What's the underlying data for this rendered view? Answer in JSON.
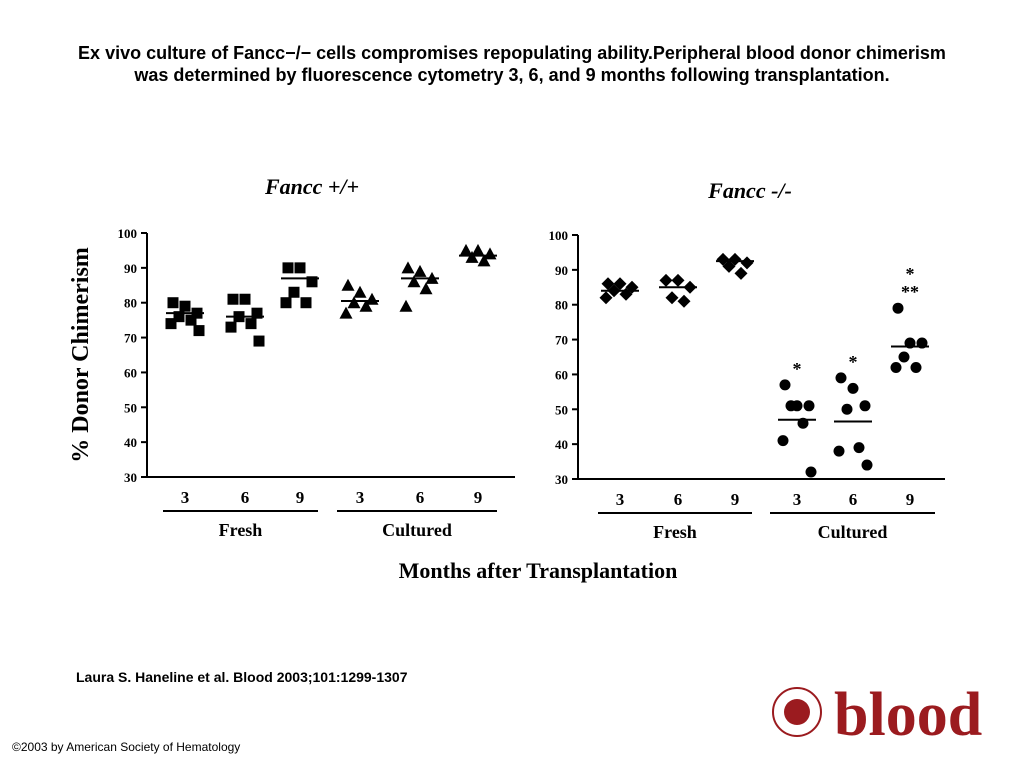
{
  "title": "Ex vivo culture of Fancc−/− cells compromises repopulating ability.Peripheral blood donor chimerism was determined by fluorescence cytometry 3, 6, and 9 months following transplantation.",
  "y_label": "% Donor Chimerism",
  "x_label": "Months after Transplantation",
  "citation": "Laura S. Haneline et al. Blood 2003;101:1299-1307",
  "copyright": "©2003 by American Society of Hematology",
  "logo": "blood",
  "chart_data": [
    {
      "type": "dotplot",
      "title": "Fancc +/+",
      "categories": [
        "3",
        "6",
        "9",
        "3",
        "6",
        "9"
      ],
      "groups": [
        "Fresh",
        "Cultured"
      ],
      "markers": [
        "square",
        "square",
        "square",
        "triangle",
        "triangle",
        "triangle"
      ],
      "color": "#000000",
      "points": [
        [
          80,
          79,
          77,
          76,
          75,
          74,
          72
        ],
        [
          81,
          81,
          77,
          76,
          74,
          73,
          69
        ],
        [
          90,
          90,
          86,
          83,
          80,
          80
        ],
        [
          85,
          83,
          81,
          80,
          79,
          77
        ],
        [
          90,
          89,
          87,
          86,
          84,
          79
        ],
        [
          95,
          95,
          94,
          93,
          92
        ]
      ],
      "means": [
        77,
        76,
        87,
        80.5,
        87,
        93.5
      ],
      "ylim": [
        30,
        100
      ],
      "yticks": [
        30,
        40,
        50,
        60,
        70,
        80,
        90,
        100
      ]
    },
    {
      "type": "dotplot",
      "title": "Fancc -/-",
      "categories": [
        "3",
        "6",
        "9",
        "3",
        "6",
        "9"
      ],
      "groups": [
        "Fresh",
        "Cultured"
      ],
      "markers": [
        "diamond",
        "diamond",
        "diamond",
        "circle",
        "circle",
        "circle"
      ],
      "color": "#000000",
      "points": [
        [
          86,
          86,
          85,
          84,
          83,
          82
        ],
        [
          87,
          87,
          85,
          82,
          81
        ],
        [
          93,
          93,
          92,
          91,
          89
        ],
        [
          57,
          51,
          51,
          51,
          46,
          41,
          32
        ],
        [
          59,
          56,
          51,
          50,
          39,
          38,
          34
        ],
        [
          79,
          69,
          69,
          65,
          62,
          62
        ]
      ],
      "means": [
        84,
        85,
        92.5,
        47,
        46.5,
        68
      ],
      "annotations": [
        null,
        null,
        null,
        [
          "*"
        ],
        [
          "*"
        ],
        [
          "*",
          "**"
        ]
      ],
      "ylim": [
        30,
        100
      ],
      "yticks": [
        30,
        40,
        50,
        60,
        70,
        80,
        90,
        100
      ]
    }
  ]
}
